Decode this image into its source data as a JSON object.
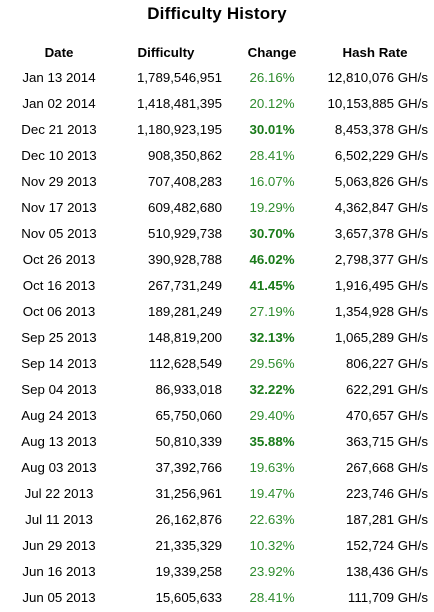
{
  "title": "Difficulty History",
  "columns": [
    "Date",
    "Difficulty",
    "Change",
    "Hash Rate"
  ],
  "colors": {
    "change": "#2e8b2e",
    "change_bold": "#1a7a1a"
  },
  "rows": [
    {
      "date": "Jan 13 2014",
      "difficulty": "1,789,546,951",
      "change": "26.16%",
      "bold": false,
      "hashrate": "12,810,076 GH/s"
    },
    {
      "date": "Jan 02 2014",
      "difficulty": "1,418,481,395",
      "change": "20.12%",
      "bold": false,
      "hashrate": "10,153,885 GH/s"
    },
    {
      "date": "Dec 21 2013",
      "difficulty": "1,180,923,195",
      "change": "30.01%",
      "bold": true,
      "hashrate": "8,453,378 GH/s"
    },
    {
      "date": "Dec 10 2013",
      "difficulty": "908,350,862",
      "change": "28.41%",
      "bold": false,
      "hashrate": "6,502,229 GH/s"
    },
    {
      "date": "Nov 29 2013",
      "difficulty": "707,408,283",
      "change": "16.07%",
      "bold": false,
      "hashrate": "5,063,826 GH/s"
    },
    {
      "date": "Nov 17 2013",
      "difficulty": "609,482,680",
      "change": "19.29%",
      "bold": false,
      "hashrate": "4,362,847 GH/s"
    },
    {
      "date": "Nov 05 2013",
      "difficulty": "510,929,738",
      "change": "30.70%",
      "bold": true,
      "hashrate": "3,657,378 GH/s"
    },
    {
      "date": "Oct 26 2013",
      "difficulty": "390,928,788",
      "change": "46.02%",
      "bold": true,
      "hashrate": "2,798,377 GH/s"
    },
    {
      "date": "Oct 16 2013",
      "difficulty": "267,731,249",
      "change": "41.45%",
      "bold": true,
      "hashrate": "1,916,495 GH/s"
    },
    {
      "date": "Oct 06 2013",
      "difficulty": "189,281,249",
      "change": "27.19%",
      "bold": false,
      "hashrate": "1,354,928 GH/s"
    },
    {
      "date": "Sep 25 2013",
      "difficulty": "148,819,200",
      "change": "32.13%",
      "bold": true,
      "hashrate": "1,065,289 GH/s"
    },
    {
      "date": "Sep 14 2013",
      "difficulty": "112,628,549",
      "change": "29.56%",
      "bold": false,
      "hashrate": "806,227 GH/s"
    },
    {
      "date": "Sep 04 2013",
      "difficulty": "86,933,018",
      "change": "32.22%",
      "bold": true,
      "hashrate": "622,291 GH/s"
    },
    {
      "date": "Aug 24 2013",
      "difficulty": "65,750,060",
      "change": "29.40%",
      "bold": false,
      "hashrate": "470,657 GH/s"
    },
    {
      "date": "Aug 13 2013",
      "difficulty": "50,810,339",
      "change": "35.88%",
      "bold": true,
      "hashrate": "363,715 GH/s"
    },
    {
      "date": "Aug 03 2013",
      "difficulty": "37,392,766",
      "change": "19.63%",
      "bold": false,
      "hashrate": "267,668 GH/s"
    },
    {
      "date": "Jul 22 2013",
      "difficulty": "31,256,961",
      "change": "19.47%",
      "bold": false,
      "hashrate": "223,746 GH/s"
    },
    {
      "date": "Jul 11 2013",
      "difficulty": "26,162,876",
      "change": "22.63%",
      "bold": false,
      "hashrate": "187,281 GH/s"
    },
    {
      "date": "Jun 29 2013",
      "difficulty": "21,335,329",
      "change": "10.32%",
      "bold": false,
      "hashrate": "152,724 GH/s"
    },
    {
      "date": "Jun 16 2013",
      "difficulty": "19,339,258",
      "change": "23.92%",
      "bold": false,
      "hashrate": "138,436 GH/s"
    },
    {
      "date": "Jun 05 2013",
      "difficulty": "15,605,633",
      "change": "28.41%",
      "bold": false,
      "hashrate": "111,709 GH/s"
    }
  ]
}
